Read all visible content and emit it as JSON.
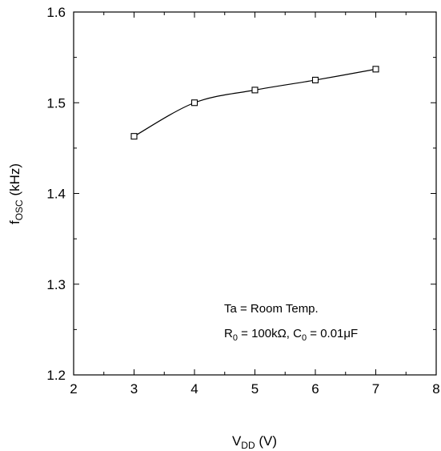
{
  "chart_data": {
    "type": "line",
    "x": [
      3,
      4,
      5,
      6,
      7
    ],
    "series": [
      {
        "values": [
          1.463,
          1.5,
          1.514,
          1.525,
          1.537
        ]
      }
    ],
    "marker": "square",
    "xlim": [
      2,
      8
    ],
    "ylim": [
      1.2,
      1.6
    ],
    "x_ticks": [
      "2",
      "3",
      "4",
      "5",
      "6",
      "7",
      "8"
    ],
    "y_ticks": [
      "1.2",
      "1.3",
      "1.4",
      "1.5",
      "1.6"
    ],
    "xlabel": {
      "main": "V",
      "sub": "DD",
      "unit": " (V)"
    },
    "ylabel": {
      "main": "f",
      "sub": "OSC",
      "unit": " (kHz)"
    },
    "annotations": {
      "line1": "Ta = Room Temp.",
      "line2": {
        "r": "R",
        "r_sub": "0",
        "r_val": " = 100kΩ, ",
        "c": "C",
        "c_sub": "0",
        "c_val": " = 0.01μF"
      }
    },
    "grid": false,
    "colors": {
      "line": "#000000",
      "axes": "#000000",
      "background": "#ffffff"
    }
  }
}
